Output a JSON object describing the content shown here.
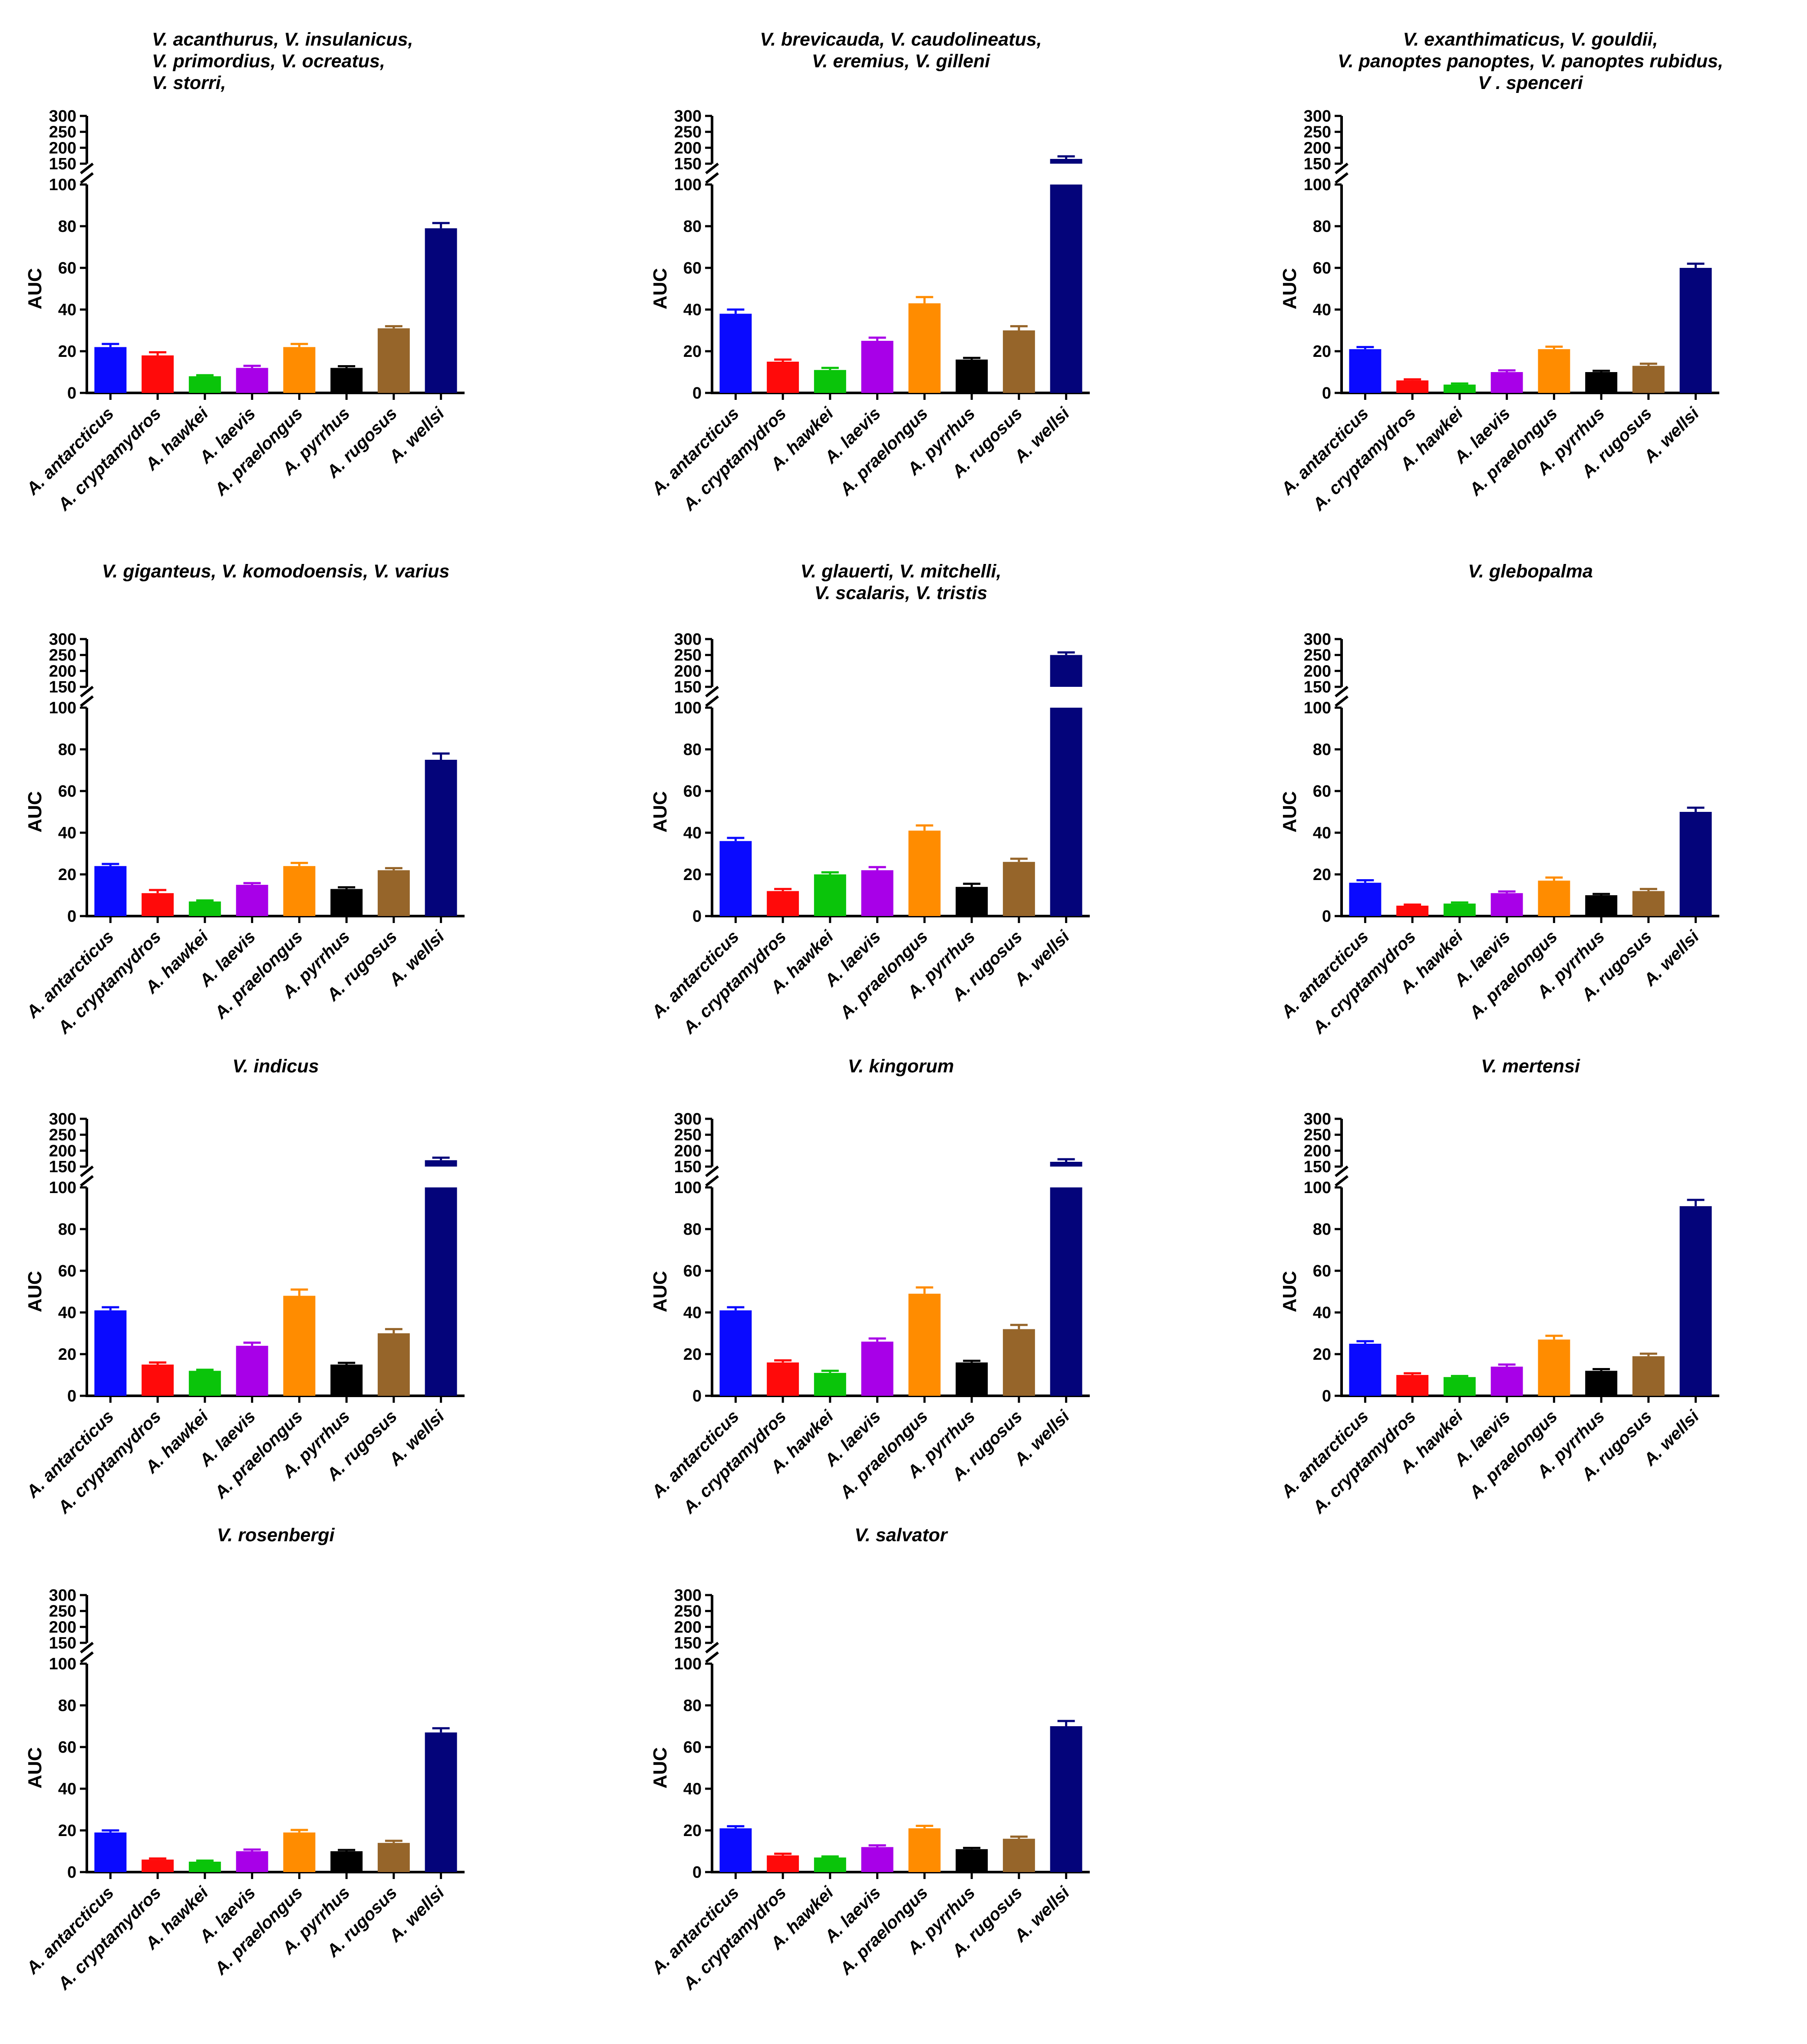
{
  "figure": {
    "ylabel": "AUC",
    "categories": [
      "A. antarcticus",
      "A. cryptamydros",
      "A. hawkei",
      "A. laevis",
      "A. praelongus",
      "A. pyrrhus",
      "A. rugosus",
      "A. wellsi"
    ],
    "colors": [
      "#0a0aff",
      "#ff0a0a",
      "#0ac40a",
      "#a800e8",
      "#ff8c00",
      "#000000",
      "#96652a",
      "#04047a"
    ],
    "lower_ticks": [
      "0",
      "20",
      "40",
      "60",
      "80",
      "100"
    ],
    "upper_ticks": [
      "150",
      "200",
      "250",
      "300"
    ]
  },
  "chart_data": [
    {
      "type": "bar",
      "title_lines": [
        "V. acanthurus, V. insulanicus,",
        "V. primordius, V. ocreatus,",
        "V. storri,"
      ],
      "title_align": "left",
      "ylabel": "AUC",
      "categories": [
        "A. antarcticus",
        "A. cryptamydros",
        "A. hawkei",
        "A. laevis",
        "A. praelongus",
        "A. pyrrhus",
        "A. rugosus",
        "A. wellsi"
      ],
      "values": [
        22,
        18,
        8,
        12,
        22,
        12,
        31,
        79
      ],
      "errors": [
        1.5,
        1.5,
        0.5,
        1,
        1.5,
        0.8,
        1,
        2.5
      ],
      "axis_break": [
        100,
        150
      ],
      "ylim_lower": [
        0,
        100
      ],
      "ylim_upper": [
        150,
        300
      ]
    },
    {
      "type": "bar",
      "title_lines": [
        "V. brevicauda, V. caudolineatus,",
        "V. eremius, V. gilleni"
      ],
      "title_align": "center",
      "ylabel": "AUC",
      "categories": [
        "A. antarcticus",
        "A. cryptamydros",
        "A. hawkei",
        "A. laevis",
        "A. praelongus",
        "A. pyrrhus",
        "A. rugosus",
        "A. wellsi"
      ],
      "values": [
        38,
        15,
        11,
        25,
        43,
        16,
        30,
        165
      ],
      "errors": [
        2,
        1,
        1,
        1.5,
        3,
        0.8,
        2,
        8
      ],
      "axis_break": [
        100,
        150
      ],
      "ylim_lower": [
        0,
        100
      ],
      "ylim_upper": [
        150,
        300
      ]
    },
    {
      "type": "bar",
      "title_lines": [
        "V. exanthimaticus, V. gouldii,",
        "V. panoptes panoptes, V. panoptes rubidus,",
        "V . spenceri"
      ],
      "title_align": "center",
      "ylabel": "AUC",
      "categories": [
        "A. antarcticus",
        "A. cryptamydros",
        "A. hawkei",
        "A. laevis",
        "A. praelongus",
        "A. pyrrhus",
        "A. rugosus",
        "A. wellsi"
      ],
      "values": [
        21,
        6,
        4,
        10,
        21,
        10,
        13,
        60
      ],
      "errors": [
        1,
        0.5,
        0.5,
        0.8,
        1.2,
        0.6,
        1,
        2
      ],
      "axis_break": [
        100,
        150
      ],
      "ylim_lower": [
        0,
        100
      ],
      "ylim_upper": [
        150,
        300
      ]
    },
    {
      "type": "bar",
      "title_lines": [
        "V. giganteus, V. komodoensis, V. varius"
      ],
      "title_align": "center",
      "ylabel": "AUC",
      "categories": [
        "A. antarcticus",
        "A. cryptamydros",
        "A. hawkei",
        "A. laevis",
        "A. praelongus",
        "A. pyrrhus",
        "A. rugosus",
        "A. wellsi"
      ],
      "values": [
        24,
        11,
        7,
        15,
        24,
        13,
        22,
        75
      ],
      "errors": [
        1,
        1.5,
        0.5,
        0.8,
        1.5,
        0.8,
        1,
        3
      ],
      "axis_break": [
        100,
        150
      ],
      "ylim_lower": [
        0,
        100
      ],
      "ylim_upper": [
        150,
        300
      ]
    },
    {
      "type": "bar",
      "title_lines": [
        "V. glauerti, V. mitchelli,",
        "V. scalaris, V. tristis"
      ],
      "title_align": "center",
      "ylabel": "AUC",
      "categories": [
        "A. antarcticus",
        "A. cryptamydros",
        "A. hawkei",
        "A. laevis",
        "A. praelongus",
        "A. pyrrhus",
        "A. rugosus",
        "A. wellsi"
      ],
      "values": [
        36,
        12,
        20,
        22,
        41,
        14,
        26,
        250
      ],
      "errors": [
        1.5,
        1,
        1,
        1.5,
        2.5,
        1.5,
        1.5,
        8
      ],
      "axis_break": [
        100,
        150
      ],
      "ylim_lower": [
        0,
        100
      ],
      "ylim_upper": [
        150,
        300
      ]
    },
    {
      "type": "bar",
      "title_lines": [
        "V. glebopalma"
      ],
      "title_align": "center",
      "ylabel": "AUC",
      "categories": [
        "A. antarcticus",
        "A. cryptamydros",
        "A. hawkei",
        "A. laevis",
        "A. praelongus",
        "A. pyrrhus",
        "A. rugosus",
        "A. wellsi"
      ],
      "values": [
        16,
        5,
        6,
        11,
        17,
        10,
        12,
        50
      ],
      "errors": [
        1.2,
        0.5,
        0.5,
        0.8,
        1.5,
        0.6,
        1,
        2
      ],
      "axis_break": [
        100,
        150
      ],
      "ylim_lower": [
        0,
        100
      ],
      "ylim_upper": [
        150,
        300
      ]
    },
    {
      "type": "bar",
      "title_lines": [
        "V. indicus"
      ],
      "title_align": "center",
      "ylabel": "AUC",
      "categories": [
        "A. antarcticus",
        "A. cryptamydros",
        "A. hawkei",
        "A. laevis",
        "A. praelongus",
        "A. pyrrhus",
        "A. rugosus",
        "A. wellsi"
      ],
      "values": [
        41,
        15,
        12,
        24,
        48,
        15,
        30,
        170
      ],
      "errors": [
        1.5,
        1,
        0.5,
        1.5,
        3,
        0.8,
        2,
        8
      ],
      "axis_break": [
        100,
        150
      ],
      "ylim_lower": [
        0,
        100
      ],
      "ylim_upper": [
        150,
        300
      ]
    },
    {
      "type": "bar",
      "title_lines": [
        "V. kingorum"
      ],
      "title_align": "center",
      "ylabel": "AUC",
      "categories": [
        "A. antarcticus",
        "A. cryptamydros",
        "A. hawkei",
        "A. laevis",
        "A. praelongus",
        "A. pyrrhus",
        "A. rugosus",
        "A. wellsi"
      ],
      "values": [
        41,
        16,
        11,
        26,
        49,
        16,
        32,
        165
      ],
      "errors": [
        1.5,
        1,
        1,
        1.5,
        3,
        0.8,
        2,
        8
      ],
      "axis_break": [
        100,
        150
      ],
      "ylim_lower": [
        0,
        100
      ],
      "ylim_upper": [
        150,
        300
      ]
    },
    {
      "type": "bar",
      "title_lines": [
        "V. mertensi"
      ],
      "title_align": "center",
      "ylabel": "AUC",
      "categories": [
        "A. antarcticus",
        "A. cryptamydros",
        "A. hawkei",
        "A. laevis",
        "A. praelongus",
        "A. pyrrhus",
        "A. rugosus",
        "A. wellsi"
      ],
      "values": [
        25,
        10,
        9,
        14,
        27,
        12,
        19,
        91
      ],
      "errors": [
        1.2,
        0.8,
        0.5,
        1,
        1.8,
        0.8,
        1.2,
        3
      ],
      "axis_break": [
        100,
        150
      ],
      "ylim_lower": [
        0,
        100
      ],
      "ylim_upper": [
        150,
        300
      ]
    },
    {
      "type": "bar",
      "title_lines": [
        "V. rosenbergi"
      ],
      "title_align": "center",
      "ylabel": "AUC",
      "categories": [
        "A. antarcticus",
        "A. cryptamydros",
        "A. hawkei",
        "A. laevis",
        "A. praelongus",
        "A. pyrrhus",
        "A. rugosus",
        "A. wellsi"
      ],
      "values": [
        19,
        6,
        5,
        10,
        19,
        10,
        14,
        67
      ],
      "errors": [
        1,
        0.5,
        0.5,
        0.8,
        1.2,
        0.6,
        1,
        2
      ],
      "axis_break": [
        100,
        150
      ],
      "ylim_lower": [
        0,
        100
      ],
      "ylim_upper": [
        150,
        300
      ]
    },
    {
      "type": "bar",
      "title_lines": [
        "V. salvator"
      ],
      "title_align": "center",
      "ylabel": "AUC",
      "categories": [
        "A. antarcticus",
        "A. cryptamydros",
        "A. hawkei",
        "A. laevis",
        "A. praelongus",
        "A. pyrrhus",
        "A. rugosus",
        "A. wellsi"
      ],
      "values": [
        21,
        8,
        7,
        12,
        21,
        11,
        16,
        70
      ],
      "errors": [
        1,
        0.8,
        0.5,
        0.8,
        1.2,
        0.6,
        1,
        2.5
      ],
      "axis_break": [
        100,
        150
      ],
      "ylim_lower": [
        0,
        100
      ],
      "ylim_upper": [
        150,
        300
      ]
    }
  ]
}
